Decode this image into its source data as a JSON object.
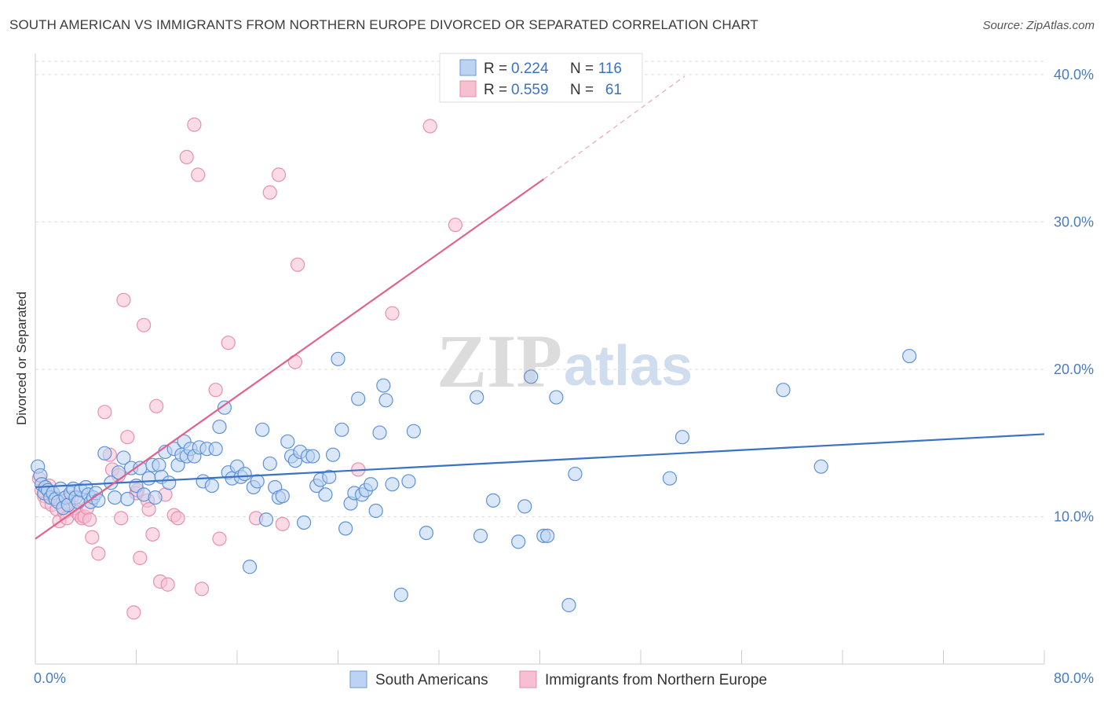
{
  "title": "SOUTH AMERICAN VS IMMIGRANTS FROM NORTHERN EUROPE DIVORCED OR SEPARATED CORRELATION CHART",
  "source": "Source: ZipAtlas.com",
  "watermark": {
    "zip": "ZIP",
    "atlas": "atlas"
  },
  "colors": {
    "blue": "#3a72c4",
    "blue_fill": "#bcd3f2",
    "pink": "#e0628d",
    "pink_fill": "#f7c0d1",
    "grid": "#dddddd",
    "tick_label": "#4a7cc2"
  },
  "legend": {
    "r_label": "R = ",
    "n_label": "N = ",
    "items": [
      {
        "r": "0.224",
        "n": "116",
        "color": "blue"
      },
      {
        "r": "0.559",
        "n": "61",
        "color": "pink"
      }
    ]
  },
  "bottom_legend": [
    "South Americans",
    "Immigrants from Northern Europe"
  ],
  "chart_data": {
    "type": "scatter",
    "title": "SOUTH AMERICAN VS IMMIGRANTS FROM NORTHERN EUROPE DIVORCED OR SEPARATED CORRELATION CHART",
    "xlabel": "",
    "ylabel": "Divorced or Separated",
    "xlim": [
      0,
      80
    ],
    "ylim": [
      0,
      40
    ],
    "x_tick_labels": [
      "0.0%",
      "80.0%"
    ],
    "y_ticks": [
      10,
      20,
      30,
      40
    ],
    "y_tick_labels": [
      "10.0%",
      "20.0%",
      "30.0%",
      "40.0%"
    ],
    "grid": true,
    "legend_position": "top-center",
    "series": [
      {
        "name": "South Americans",
        "color": "blue",
        "r": 0.224,
        "n": 116,
        "trend": {
          "x": [
            0,
            80
          ],
          "y": [
            12.0,
            15.6
          ]
        },
        "points": [
          [
            0.2,
            13.4
          ],
          [
            0.4,
            12.8
          ],
          [
            0.5,
            12.2
          ],
          [
            0.7,
            11.6
          ],
          [
            0.8,
            12.0
          ],
          [
            1.0,
            11.8
          ],
          [
            1.2,
            11.3
          ],
          [
            1.4,
            11.6
          ],
          [
            1.6,
            11.2
          ],
          [
            1.8,
            11.0
          ],
          [
            2.0,
            11.9
          ],
          [
            2.2,
            10.6
          ],
          [
            2.4,
            11.3
          ],
          [
            2.6,
            10.8
          ],
          [
            2.8,
            11.6
          ],
          [
            3.0,
            11.9
          ],
          [
            3.2,
            11.3
          ],
          [
            3.4,
            11.0
          ],
          [
            3.6,
            11.8
          ],
          [
            4.0,
            12.0
          ],
          [
            4.2,
            11.5
          ],
          [
            4.4,
            11.0
          ],
          [
            4.6,
            11.3
          ],
          [
            4.8,
            11.6
          ],
          [
            5.0,
            11.1
          ],
          [
            5.5,
            14.3
          ],
          [
            6.0,
            12.3
          ],
          [
            6.3,
            11.3
          ],
          [
            6.6,
            13.0
          ],
          [
            7.0,
            14.0
          ],
          [
            7.3,
            11.2
          ],
          [
            7.6,
            13.3
          ],
          [
            8.0,
            12.1
          ],
          [
            8.3,
            13.3
          ],
          [
            8.6,
            11.5
          ],
          [
            9.0,
            12.6
          ],
          [
            9.3,
            13.5
          ],
          [
            9.5,
            11.3
          ],
          [
            9.8,
            13.5
          ],
          [
            10.0,
            12.7
          ],
          [
            10.3,
            14.4
          ],
          [
            10.6,
            12.3
          ],
          [
            11.0,
            14.6
          ],
          [
            11.3,
            13.5
          ],
          [
            11.6,
            14.2
          ],
          [
            11.8,
            15.1
          ],
          [
            12.0,
            14.1
          ],
          [
            12.3,
            14.6
          ],
          [
            12.6,
            14.1
          ],
          [
            13.0,
            14.7
          ],
          [
            13.3,
            12.4
          ],
          [
            13.6,
            14.6
          ],
          [
            14.0,
            12.1
          ],
          [
            14.3,
            14.6
          ],
          [
            14.6,
            16.1
          ],
          [
            15.0,
            17.4
          ],
          [
            15.3,
            13.0
          ],
          [
            15.6,
            12.6
          ],
          [
            16.0,
            13.4
          ],
          [
            16.3,
            12.7
          ],
          [
            16.6,
            12.9
          ],
          [
            17.0,
            6.6
          ],
          [
            17.3,
            12.0
          ],
          [
            17.6,
            12.4
          ],
          [
            18.0,
            15.9
          ],
          [
            18.3,
            9.8
          ],
          [
            18.6,
            13.6
          ],
          [
            19.0,
            12.0
          ],
          [
            19.3,
            11.3
          ],
          [
            19.6,
            11.4
          ],
          [
            20.0,
            15.1
          ],
          [
            20.3,
            14.1
          ],
          [
            20.6,
            13.8
          ],
          [
            21.0,
            14.4
          ],
          [
            21.3,
            9.6
          ],
          [
            21.6,
            14.1
          ],
          [
            22.0,
            14.1
          ],
          [
            22.3,
            12.1
          ],
          [
            22.6,
            12.5
          ],
          [
            23.0,
            11.5
          ],
          [
            23.3,
            12.7
          ],
          [
            23.6,
            14.2
          ],
          [
            24.0,
            20.7
          ],
          [
            24.3,
            15.9
          ],
          [
            24.6,
            9.2
          ],
          [
            25.0,
            10.9
          ],
          [
            25.3,
            11.6
          ],
          [
            25.6,
            18.0
          ],
          [
            25.9,
            11.5
          ],
          [
            26.2,
            11.8
          ],
          [
            26.6,
            12.2
          ],
          [
            27.0,
            10.4
          ],
          [
            27.3,
            15.7
          ],
          [
            27.6,
            18.9
          ],
          [
            27.8,
            17.9
          ],
          [
            28.3,
            12.2
          ],
          [
            29.0,
            4.7
          ],
          [
            29.6,
            12.4
          ],
          [
            30.0,
            15.8
          ],
          [
            31.0,
            8.9
          ],
          [
            35.0,
            18.1
          ],
          [
            35.3,
            8.7
          ],
          [
            36.3,
            11.1
          ],
          [
            38.3,
            8.3
          ],
          [
            38.8,
            10.7
          ],
          [
            39.3,
            19.5
          ],
          [
            40.3,
            8.7
          ],
          [
            40.6,
            8.7
          ],
          [
            41.3,
            18.1
          ],
          [
            42.3,
            4.0
          ],
          [
            42.8,
            12.9
          ],
          [
            50.3,
            12.6
          ],
          [
            51.3,
            15.4
          ],
          [
            59.3,
            18.6
          ],
          [
            62.3,
            13.4
          ],
          [
            69.3,
            20.9
          ]
        ]
      },
      {
        "name": "Immigrants from Northern Europe",
        "color": "pink",
        "r": 0.559,
        "n": 61,
        "trend": {
          "x": [
            0,
            40.3
          ],
          "y": [
            8.5,
            32.9
          ],
          "dashed_to": {
            "x": 51.5,
            "y": 39.9
          }
        },
        "points": [
          [
            0.3,
            12.6
          ],
          [
            0.5,
            11.8
          ],
          [
            0.7,
            11.4
          ],
          [
            0.9,
            11.0
          ],
          [
            1.1,
            12.1
          ],
          [
            1.3,
            10.8
          ],
          [
            1.5,
            11.3
          ],
          [
            1.7,
            10.5
          ],
          [
            1.9,
            9.7
          ],
          [
            2.1,
            11.2
          ],
          [
            2.3,
            10.3
          ],
          [
            2.5,
            9.9
          ],
          [
            2.7,
            10.9
          ],
          [
            2.9,
            11.3
          ],
          [
            3.1,
            10.6
          ],
          [
            3.3,
            10.3
          ],
          [
            3.5,
            10.1
          ],
          [
            3.7,
            9.9
          ],
          [
            3.9,
            10.0
          ],
          [
            4.1,
            10.6
          ],
          [
            4.3,
            9.8
          ],
          [
            4.5,
            8.6
          ],
          [
            5.0,
            7.5
          ],
          [
            5.5,
            17.1
          ],
          [
            5.9,
            14.2
          ],
          [
            6.1,
            13.2
          ],
          [
            6.6,
            12.8
          ],
          [
            6.8,
            9.9
          ],
          [
            7.0,
            24.7
          ],
          [
            7.3,
            15.4
          ],
          [
            7.8,
            3.5
          ],
          [
            8.0,
            11.6
          ],
          [
            8.3,
            7.2
          ],
          [
            8.6,
            23.0
          ],
          [
            8.9,
            11.1
          ],
          [
            9.0,
            10.5
          ],
          [
            9.3,
            8.8
          ],
          [
            9.6,
            17.5
          ],
          [
            9.9,
            5.6
          ],
          [
            10.3,
            11.5
          ],
          [
            10.5,
            5.4
          ],
          [
            11.0,
            10.1
          ],
          [
            11.3,
            9.9
          ],
          [
            12.0,
            34.4
          ],
          [
            12.6,
            36.6
          ],
          [
            12.9,
            33.2
          ],
          [
            13.2,
            5.1
          ],
          [
            14.3,
            18.6
          ],
          [
            14.6,
            8.5
          ],
          [
            15.3,
            21.8
          ],
          [
            17.5,
            9.9
          ],
          [
            18.6,
            32.0
          ],
          [
            19.3,
            33.2
          ],
          [
            19.6,
            9.5
          ],
          [
            20.6,
            20.5
          ],
          [
            20.8,
            27.1
          ],
          [
            25.6,
            13.2
          ],
          [
            28.3,
            23.8
          ],
          [
            31.3,
            36.5
          ],
          [
            33.3,
            29.8
          ],
          [
            8.1,
            11.8
          ]
        ]
      }
    ]
  }
}
